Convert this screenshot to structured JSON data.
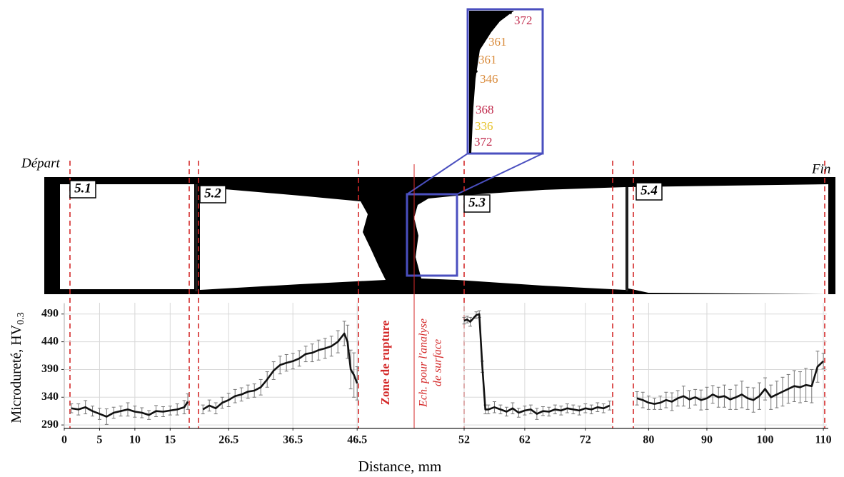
{
  "start_label": "Départ",
  "end_label": "Fin",
  "inset": {
    "values": [
      372,
      361,
      361,
      346,
      368,
      336,
      372
    ],
    "colors": [
      "#c0284a",
      "#d98a3a",
      "#d98a3a",
      "#d98a3a",
      "#c0284a",
      "#e6c22a",
      "#c0284a"
    ]
  },
  "rupture_label": "Zone de rupture",
  "sample_label": [
    "Ech. pour l'analyse",
    "de surface"
  ],
  "chart_data": {
    "type": "line",
    "ylabel": "Microdureté, HV",
    "ylabel_subscript": "0.3",
    "xlabel": "Distance, mm",
    "ylim": [
      285,
      500
    ],
    "yticks": [
      290,
      340,
      390,
      440,
      490
    ],
    "grid": true,
    "series": [
      {
        "name": "5.1",
        "color": "#111111",
        "xlim": [
          0,
          17.7
        ],
        "xticks": [
          0,
          5,
          10,
          15
        ],
        "x": [
          1,
          2,
          3,
          4,
          5,
          6,
          7,
          8,
          9,
          10,
          11,
          12,
          13,
          14,
          15,
          16,
          17,
          17.5
        ],
        "values": [
          320,
          318,
          322,
          315,
          310,
          305,
          312,
          315,
          318,
          314,
          312,
          308,
          315,
          314,
          316,
          318,
          322,
          332
        ],
        "errors": [
          8,
          10,
          12,
          9,
          10,
          14,
          10,
          9,
          12,
          10,
          9,
          8,
          10,
          9,
          8,
          10,
          12,
          14
        ]
      },
      {
        "name": "5.2",
        "color": "#111111",
        "xlim": [
          21.7,
          46.7
        ],
        "xticks": [
          26.5,
          36.5,
          46.5
        ],
        "x": [
          22.5,
          23.5,
          24.5,
          25.5,
          26.5,
          27.5,
          28.5,
          29.5,
          30.5,
          31.5,
          32.5,
          33.5,
          34.5,
          35.5,
          36.5,
          37.5,
          38.5,
          39.5,
          40.5,
          41.5,
          42.5,
          43.5,
          44.5,
          45,
          45.5,
          46,
          46.5
        ],
        "values": [
          318,
          325,
          320,
          330,
          335,
          342,
          345,
          350,
          352,
          358,
          372,
          388,
          398,
          402,
          405,
          410,
          418,
          420,
          425,
          428,
          432,
          440,
          455,
          440,
          390,
          380,
          365
        ],
        "errors": [
          8,
          10,
          10,
          10,
          12,
          12,
          12,
          12,
          12,
          14,
          14,
          16,
          16,
          15,
          14,
          14,
          14,
          16,
          18,
          18,
          18,
          20,
          22,
          30,
          35,
          40,
          30
        ]
      },
      {
        "name": "5.3",
        "color": "#111111",
        "xlim": [
          52,
          76.5
        ],
        "xticks": [
          52,
          62,
          72
        ],
        "x": [
          52,
          52.5,
          53,
          54,
          54.5,
          55,
          55.5,
          56,
          57,
          58,
          59,
          60,
          61,
          62,
          63,
          64,
          65,
          66,
          67,
          68,
          69,
          70,
          71,
          72,
          73,
          74,
          75,
          76
        ],
        "values": [
          478,
          480,
          476,
          488,
          490,
          395,
          318,
          318,
          322,
          318,
          314,
          320,
          312,
          316,
          318,
          310,
          315,
          314,
          318,
          316,
          320,
          318,
          316,
          320,
          318,
          322,
          320,
          325
        ],
        "errors": [
          6,
          6,
          8,
          6,
          6,
          10,
          8,
          8,
          10,
          8,
          8,
          10,
          8,
          8,
          8,
          10,
          8,
          8,
          8,
          8,
          8,
          8,
          8,
          8,
          8,
          8,
          8,
          8
        ]
      },
      {
        "name": "5.4",
        "color": "#111111",
        "xlim": [
          77.5,
          110.6
        ],
        "xticks": [
          80,
          90,
          100,
          110
        ],
        "x": [
          78,
          79,
          80,
          81,
          82,
          83,
          84,
          85,
          86,
          87,
          88,
          89,
          90,
          91,
          92,
          93,
          94,
          95,
          96,
          97,
          98,
          99,
          100,
          101,
          102,
          103,
          104,
          105,
          106,
          107,
          108,
          109,
          110
        ],
        "values": [
          338,
          335,
          330,
          328,
          330,
          335,
          332,
          338,
          342,
          336,
          340,
          335,
          338,
          345,
          340,
          342,
          336,
          340,
          345,
          338,
          335,
          342,
          355,
          340,
          345,
          350,
          355,
          360,
          358,
          362,
          360,
          395,
          405
        ],
        "errors": [
          12,
          14,
          12,
          10,
          12,
          14,
          16,
          14,
          18,
          16,
          14,
          18,
          20,
          16,
          18,
          20,
          18,
          22,
          24,
          20,
          22,
          24,
          20,
          22,
          24,
          26,
          26,
          28,
          28,
          30,
          30,
          28,
          14
        ]
      }
    ]
  }
}
